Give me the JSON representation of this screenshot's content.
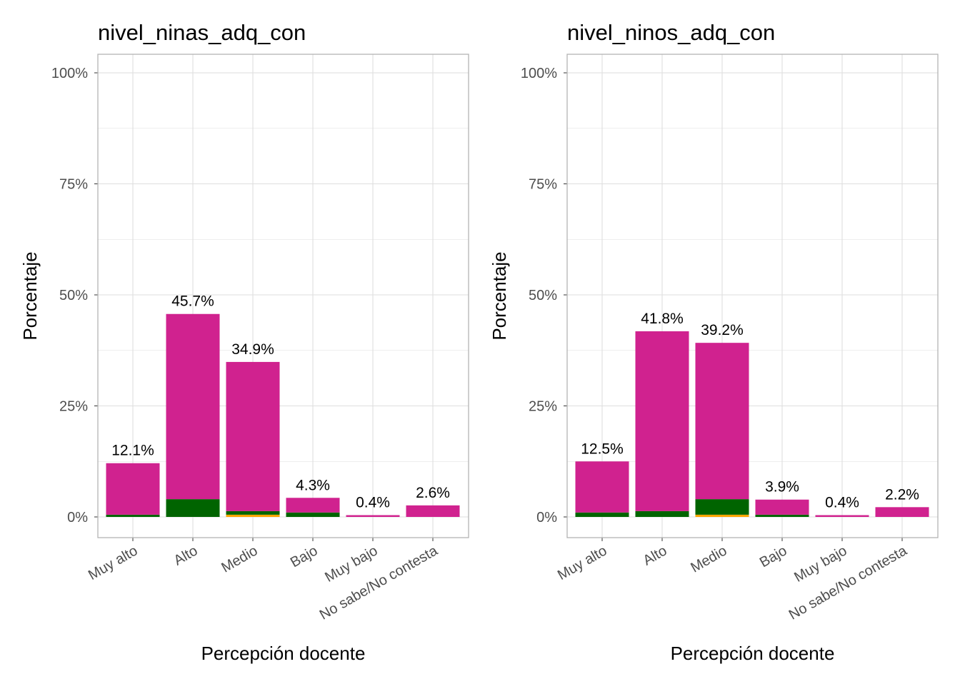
{
  "colors": {
    "segment_magenta": "#D0228F",
    "segment_green": "#006400",
    "segment_orange": "#FFA500",
    "grid": "#DEDEDE",
    "border": "#B3B3B3"
  },
  "chart_data": [
    {
      "type": "bar",
      "stacked": true,
      "title": "nivel_ninas_adq_con",
      "xlabel": "Percepción docente",
      "ylabel": "Porcentaje",
      "ylim": [
        0,
        100
      ],
      "yticks": [
        "0%",
        "25%",
        "50%",
        "75%",
        "100%"
      ],
      "yticks_values": [
        0,
        25,
        50,
        75,
        100
      ],
      "categories": [
        "Muy alto",
        "Alto",
        "Medio",
        "Bajo",
        "Muy bajo",
        "No sabe/No contesta"
      ],
      "totals": [
        12.1,
        45.7,
        34.9,
        4.3,
        0.4,
        2.6
      ],
      "labels": [
        "12.1%",
        "45.7%",
        "34.9%",
        "4.3%",
        "0.4%",
        "2.6%"
      ],
      "series": [
        {
          "name": "orange",
          "color": "#FFA500",
          "values": [
            0,
            0,
            0.5,
            0,
            0,
            0
          ]
        },
        {
          "name": "green",
          "color": "#006400",
          "values": [
            0.5,
            4.0,
            0.8,
            1.0,
            0,
            0
          ]
        },
        {
          "name": "magenta",
          "color": "#D0228F",
          "values": [
            11.6,
            41.7,
            33.6,
            3.3,
            0.4,
            2.6
          ]
        }
      ]
    },
    {
      "type": "bar",
      "stacked": true,
      "title": "nivel_ninos_adq_con",
      "xlabel": "Percepción docente",
      "ylabel": "Porcentaje",
      "ylim": [
        0,
        100
      ],
      "yticks": [
        "0%",
        "25%",
        "50%",
        "75%",
        "100%"
      ],
      "yticks_values": [
        0,
        25,
        50,
        75,
        100
      ],
      "categories": [
        "Muy alto",
        "Alto",
        "Medio",
        "Bajo",
        "Muy bajo",
        "No sabe/No contesta"
      ],
      "totals": [
        12.5,
        41.8,
        39.2,
        3.9,
        0.4,
        2.2
      ],
      "labels": [
        "12.5%",
        "41.8%",
        "39.2%",
        "3.9%",
        "0.4%",
        "2.2%"
      ],
      "series": [
        {
          "name": "orange",
          "color": "#FFA500",
          "values": [
            0,
            0,
            0.5,
            0,
            0,
            0
          ]
        },
        {
          "name": "green",
          "color": "#006400",
          "values": [
            1.0,
            1.3,
            3.5,
            0.5,
            0,
            0
          ]
        },
        {
          "name": "magenta",
          "color": "#D0228F",
          "values": [
            11.5,
            40.5,
            35.2,
            3.4,
            0.4,
            2.2
          ]
        }
      ]
    }
  ]
}
